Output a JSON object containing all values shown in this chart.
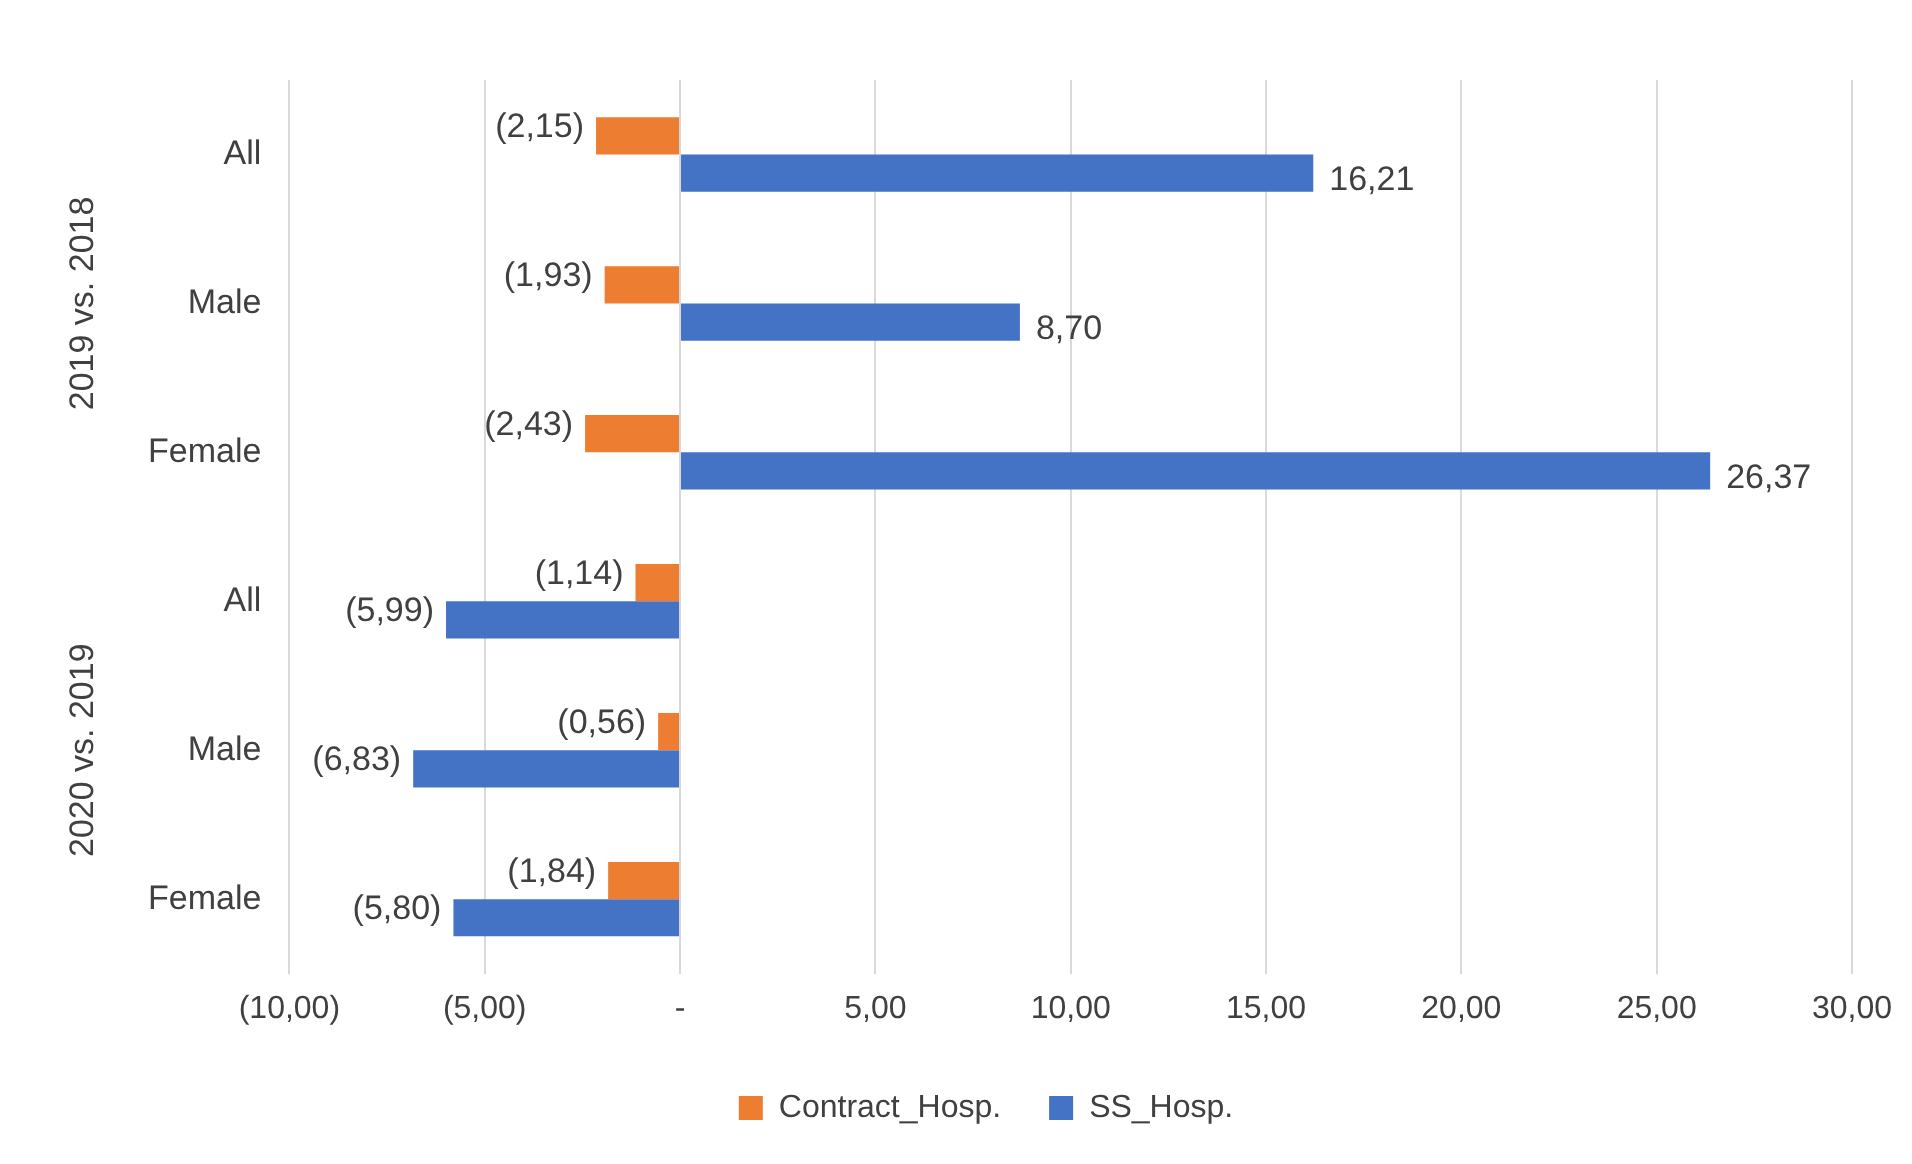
{
  "chart_data": {
    "type": "bar",
    "orientation": "horizontal",
    "categories": [
      "All",
      "Male",
      "Female",
      "All",
      "Male",
      "Female"
    ],
    "annotations": [
      "2019 vs. 2018",
      "2020 vs. 2019"
    ],
    "series": [
      {
        "name": "Contract_Hosp.",
        "color": "#ed7d31",
        "values": [
          -2.15,
          -1.93,
          -2.43,
          -1.14,
          -0.56,
          -1.84
        ],
        "value_labels": [
          "(2,15)",
          "(1,93)",
          "(2,43)",
          "(1,14)",
          "(0,56)",
          "(1,84)"
        ]
      },
      {
        "name": "SS_Hosp.",
        "color": "#4472c4",
        "values": [
          16.21,
          8.7,
          26.37,
          -5.99,
          -6.83,
          -5.8
        ],
        "value_labels": [
          "16,21",
          "8,70",
          "26,37",
          "(5,99)",
          "(6,83)",
          "(5,80)"
        ]
      }
    ],
    "xlim": [
      -10,
      30
    ],
    "xticks": [
      {
        "value": -10,
        "label": "(10,00)"
      },
      {
        "value": -5,
        "label": "(5,00)"
      },
      {
        "value": 0,
        "label": "-"
      },
      {
        "value": 5,
        "label": "5,00"
      },
      {
        "value": 10,
        "label": "10,00"
      },
      {
        "value": 15,
        "label": "15,00"
      },
      {
        "value": 20,
        "label": "20,00"
      },
      {
        "value": 25,
        "label": "25,00"
      },
      {
        "value": 30,
        "label": "30,00"
      }
    ],
    "grid": "x",
    "legend": "bottom"
  }
}
